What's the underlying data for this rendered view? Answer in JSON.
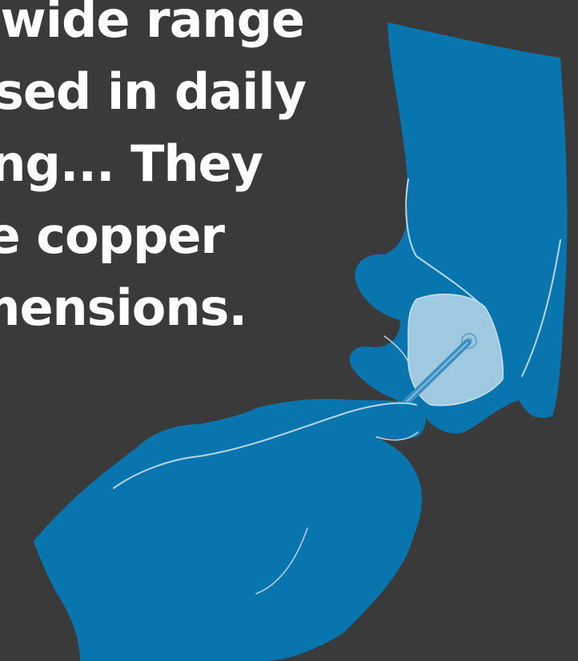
{
  "text": {
    "lines": [
      "wide range",
      "sed in daily",
      "ing... They",
      "e copper",
      "mensions."
    ]
  },
  "colors": {
    "background": "#3a3a3a",
    "glove": "#0875ae",
    "glove_outline": "#b9d7e8",
    "lens": "#9ec9e1",
    "text": "#ffffff"
  },
  "icons": {
    "upper_hand": "gloved-hand-holding-tissue",
    "lower_hand": "gloved-hand-holding-probe"
  }
}
